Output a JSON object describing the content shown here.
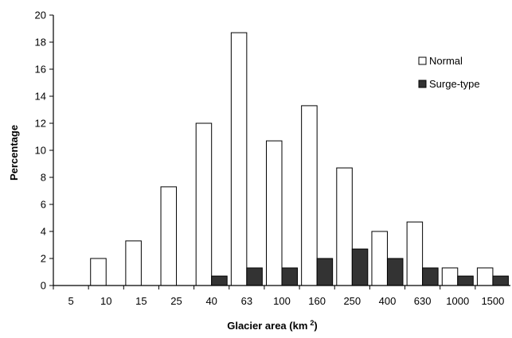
{
  "chart_data": {
    "type": "bar",
    "xlabel": "Glacier area (km",
    "xlabel_sup": "2",
    "xlabel_close": ")",
    "ylabel": "Percentage",
    "ylim": [
      0,
      20
    ],
    "yticks": [
      "0",
      "2",
      "4",
      "6",
      "8",
      "10",
      "12",
      "14",
      "16",
      "18",
      "20"
    ],
    "categories": [
      "5",
      "10",
      "15",
      "25",
      "40",
      "63",
      "100",
      "160",
      "250",
      "400",
      "630",
      "1000",
      "1500"
    ],
    "series": [
      {
        "name": "Normal",
        "color": "#ffffff",
        "values": [
          0,
          2.0,
          3.3,
          7.3,
          12.0,
          18.7,
          10.7,
          13.3,
          8.7,
          4.0,
          4.7,
          1.3,
          1.3
        ]
      },
      {
        "name": "Surge-type",
        "color": "#333333",
        "values": [
          0,
          0,
          0,
          0,
          0.7,
          1.3,
          1.3,
          2.0,
          2.7,
          2.0,
          1.3,
          0.7,
          0.7
        ]
      }
    ],
    "grid": false,
    "legend_position": "top-right"
  }
}
